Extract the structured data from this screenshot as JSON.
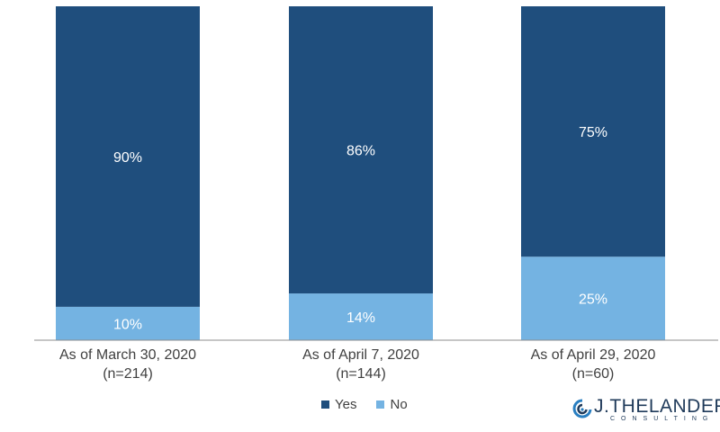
{
  "chart_data": {
    "type": "bar",
    "stacked": true,
    "normalized": true,
    "categories": [
      [
        "As of March 30, 2020",
        "(n=214)"
      ],
      [
        "As of April 7, 2020",
        "(n=144)"
      ],
      [
        "As of April 29, 2020",
        "(n=60)"
      ]
    ],
    "series": [
      {
        "name": "No",
        "values": [
          10,
          14,
          25
        ],
        "color": "#74b3e2",
        "labels": [
          "10%",
          "14%",
          "25%"
        ]
      },
      {
        "name": "Yes",
        "values": [
          90,
          86,
          75
        ],
        "color": "#1f4e7d",
        "labels": [
          "90%",
          "86%",
          "75%"
        ]
      }
    ],
    "ylim": [
      0,
      100
    ],
    "grid": false,
    "legend_position": "bottom-center",
    "legend_order": [
      "Yes",
      "No"
    ]
  },
  "logo": {
    "text": "J.THELANDER",
    "subtext": "CONSULTING"
  }
}
